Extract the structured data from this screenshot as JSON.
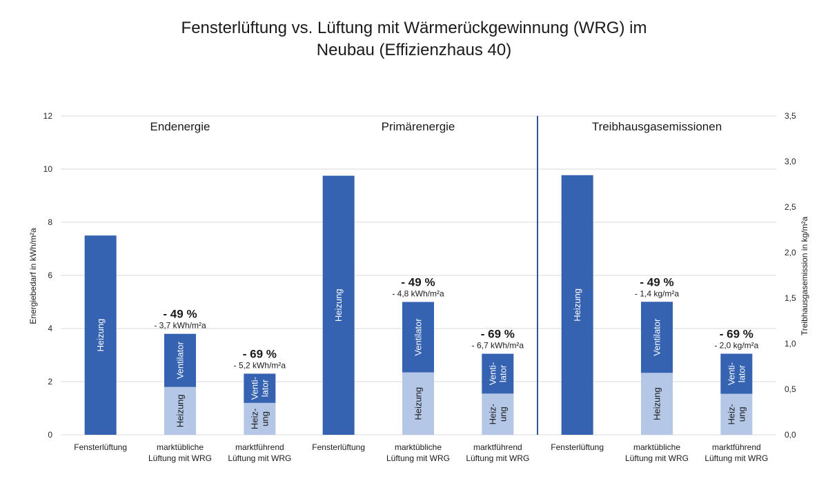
{
  "chart_data": {
    "type": "bar",
    "stacked": true,
    "title_lines": [
      "Fensterlüftung vs. Lüftung mit Wärmerückgewinnung (WRG) im",
      "Neubau (Effizienzhaus 40)"
    ],
    "ylabel_left": "Energiebedarf in kWh/m²a",
    "ylabel_right": "Treibhausgasemission in kg/m²a",
    "ylim_left": [
      0,
      12
    ],
    "yticks_left": [
      "0",
      "2",
      "4",
      "6",
      "8",
      "10",
      "12"
    ],
    "ylim_right": [
      0,
      3.5
    ],
    "yticks_right": [
      "0,0",
      "0,5",
      "1,0",
      "1,5",
      "2,0",
      "2,5",
      "3,0",
      "3,5"
    ],
    "grid": true,
    "colors": {
      "heizung_dark": "#3563B1",
      "heizung_light": "#B4C7E7",
      "ventilator": "#3563B1",
      "divider": "#2F5597"
    },
    "groups": [
      {
        "name": "Endenergie",
        "axis": "left",
        "bars": [
          {
            "category_lines": [
              "Fensterlüftung"
            ],
            "heizung": 7.5,
            "ventilator": 0,
            "heizung_label": [
              "Heizung"
            ],
            "ventilator_label": [],
            "pct": "",
            "abs": ""
          },
          {
            "category_lines": [
              "marktübliche",
              "Lüftung mit WRG"
            ],
            "heizung": 1.8,
            "ventilator": 2.0,
            "heizung_label": [
              "Heizung"
            ],
            "ventilator_label": [
              "Ventilator"
            ],
            "pct": "- 49 %",
            "abs": "- 3,7 kWh/m²a"
          },
          {
            "category_lines": [
              "marktführend",
              "Lüftung mit WRG"
            ],
            "heizung": 1.2,
            "ventilator": 1.1,
            "heizung_label": [
              "Heiz-",
              "ung"
            ],
            "ventilator_label": [
              "Venti-",
              "lator"
            ],
            "pct": "- 69 %",
            "abs": "- 5,2 kWh/m²a"
          }
        ]
      },
      {
        "name": "Primärenergie",
        "axis": "left",
        "bars": [
          {
            "category_lines": [
              "Fensterlüftung"
            ],
            "heizung": 9.75,
            "ventilator": 0,
            "heizung_label": [
              "Heizung"
            ],
            "ventilator_label": [],
            "pct": "",
            "abs": ""
          },
          {
            "category_lines": [
              "marktübliche",
              "Lüftung mit WRG"
            ],
            "heizung": 2.35,
            "ventilator": 2.65,
            "heizung_label": [
              "Heizung"
            ],
            "ventilator_label": [
              "Ventilator"
            ],
            "pct": "- 49 %",
            "abs": "- 4,8 kWh/m²a"
          },
          {
            "category_lines": [
              "marktführend",
              "Lüftung mit WRG"
            ],
            "heizung": 1.55,
            "ventilator": 1.5,
            "heizung_label": [
              "Heiz-",
              "ung"
            ],
            "ventilator_label": [
              "Venti-",
              "lator"
            ],
            "pct": "- 69 %",
            "abs": "- 6,7 kWh/m²a"
          }
        ]
      },
      {
        "name": "Treibhausgasemissionen",
        "axis": "right",
        "bars": [
          {
            "category_lines": [
              "Fensterlüftung"
            ],
            "heizung": 2.85,
            "ventilator": 0,
            "heizung_label": [
              "Heizung"
            ],
            "ventilator_label": [],
            "pct": "",
            "abs": ""
          },
          {
            "category_lines": [
              "marktübliche",
              "Lüftung mit WRG"
            ],
            "heizung": 0.68,
            "ventilator": 0.78,
            "heizung_label": [
              "Heizung"
            ],
            "ventilator_label": [
              "Ventilator"
            ],
            "pct": "- 49 %",
            "abs": "- 1,4 kg/m²a"
          },
          {
            "category_lines": [
              "marktführend",
              "Lüftung mit WRG"
            ],
            "heizung": 0.45,
            "ventilator": 0.44,
            "heizung_label": [
              "Heiz-",
              "ung"
            ],
            "ventilator_label": [
              "Venti-",
              "lator"
            ],
            "pct": "- 69 %",
            "abs": "- 2,0 kg/m²a"
          }
        ]
      }
    ]
  }
}
